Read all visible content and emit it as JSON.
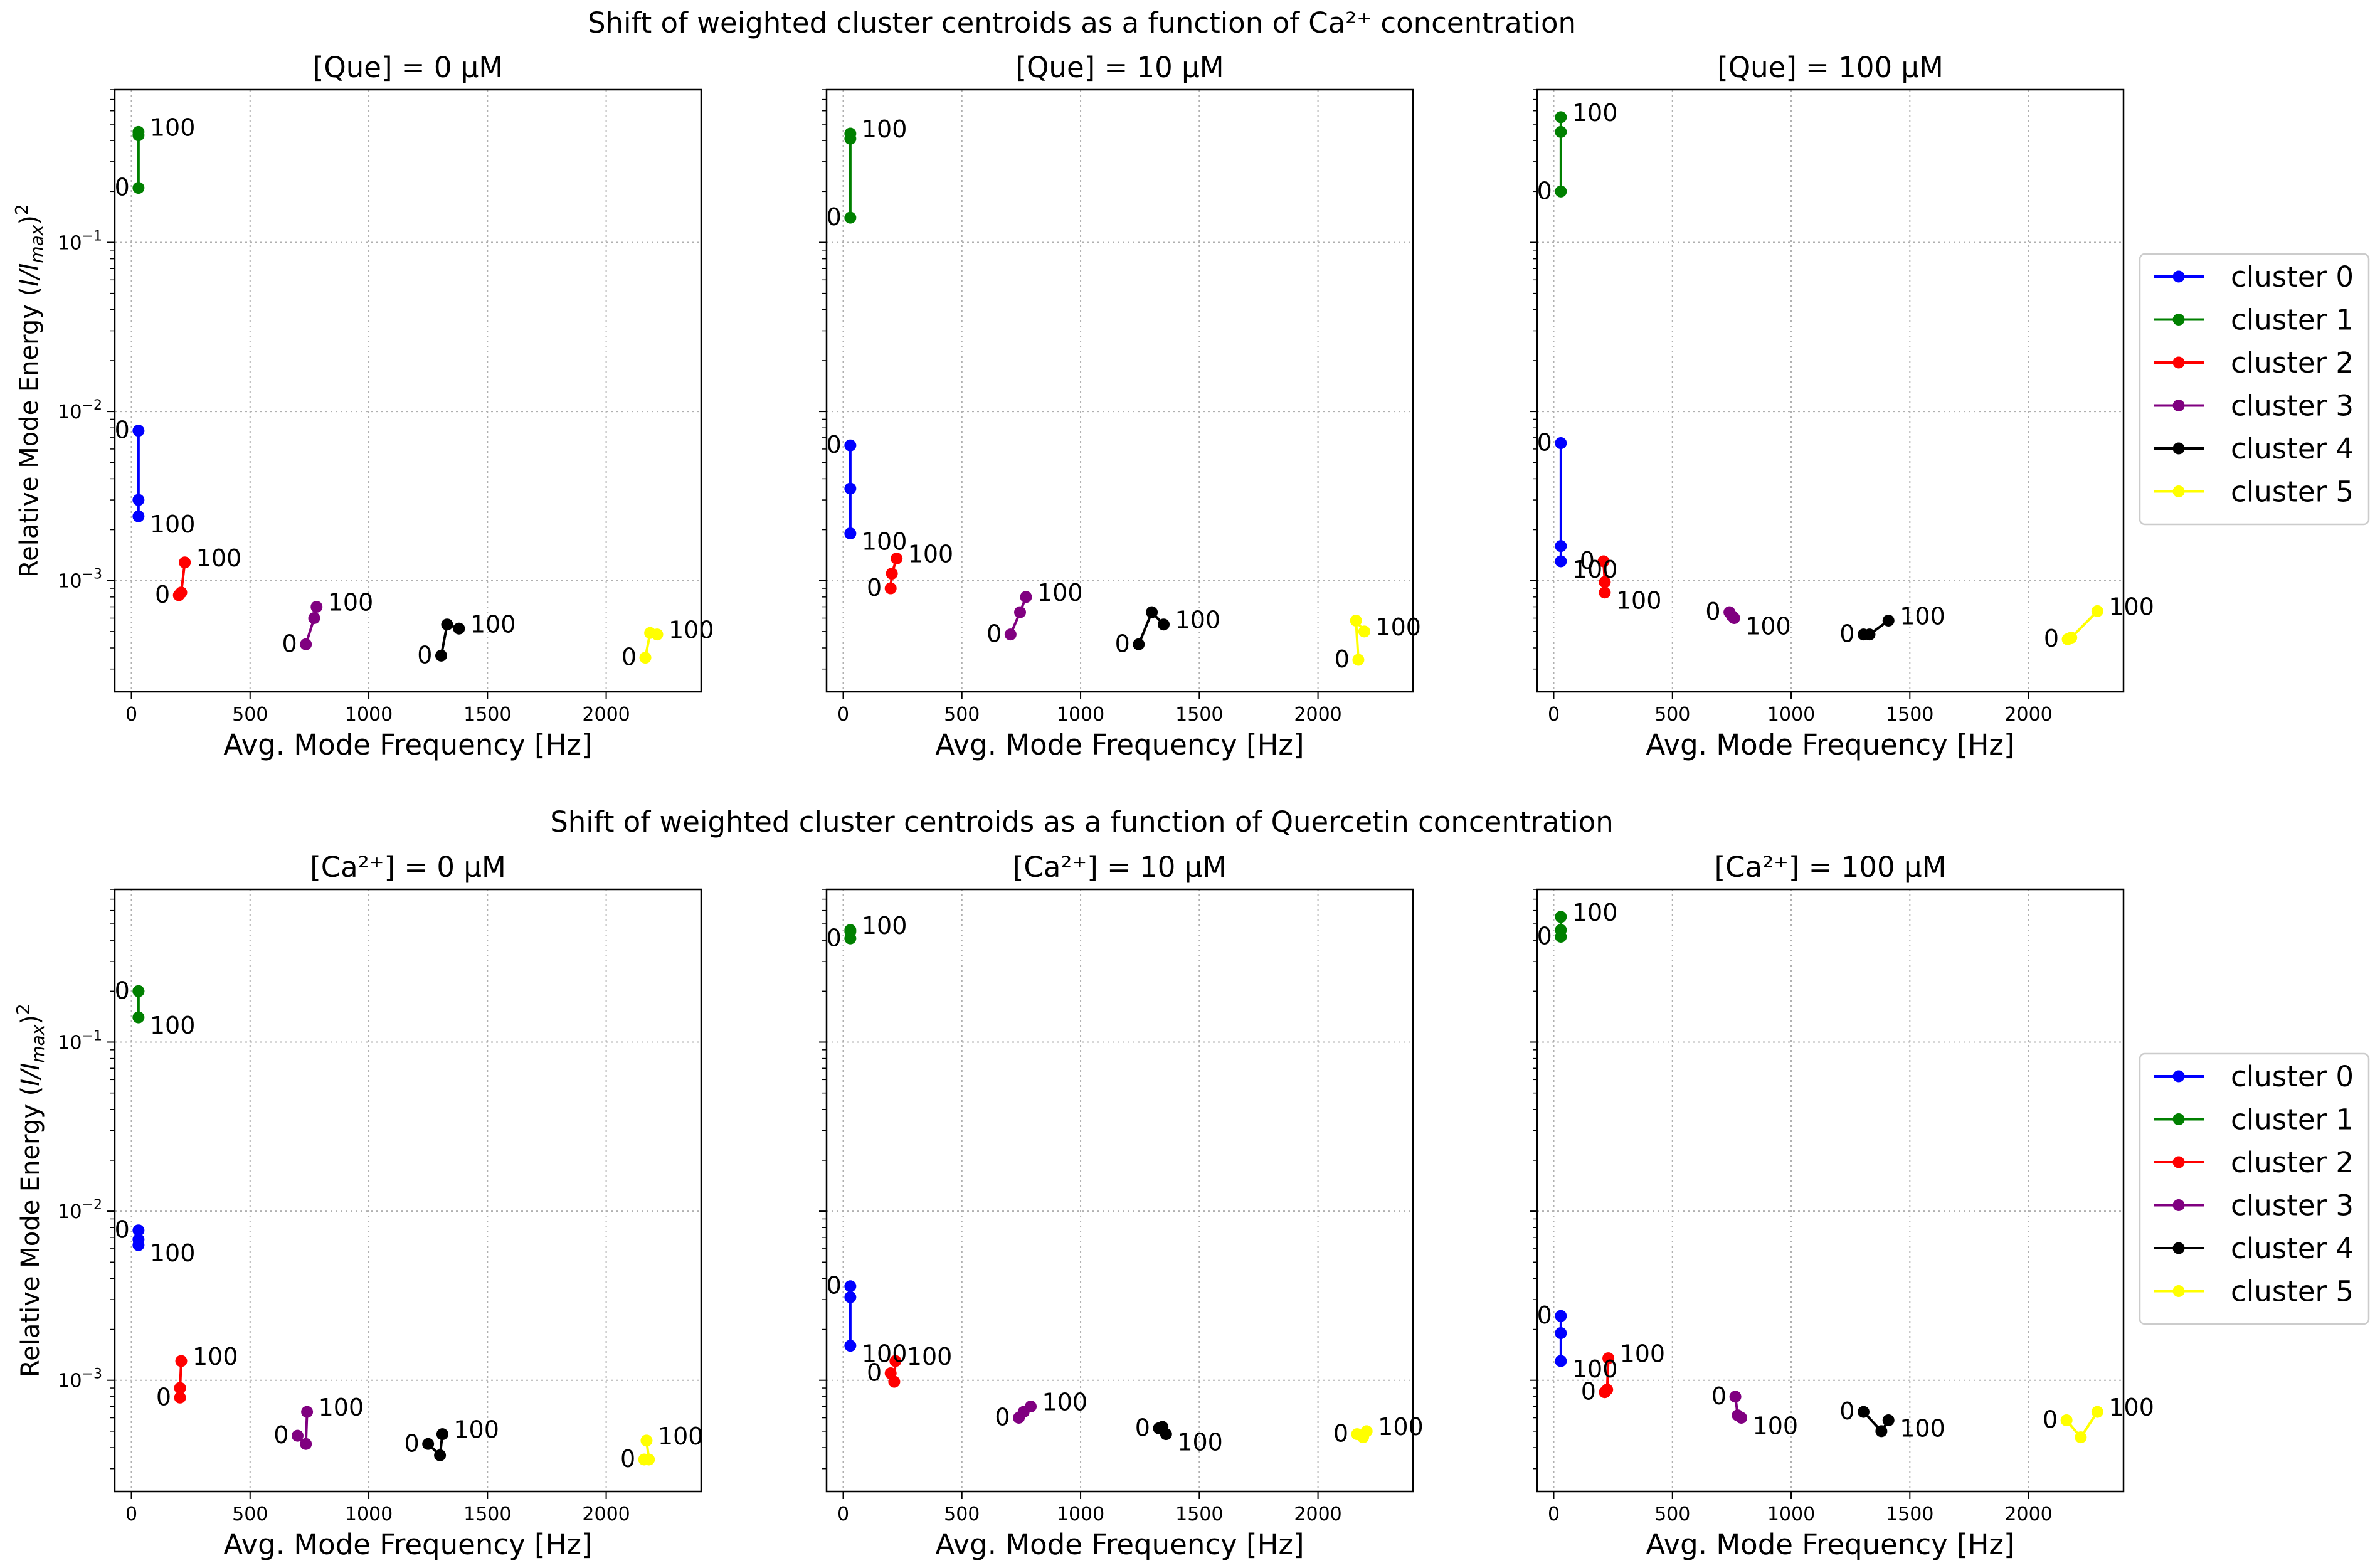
{
  "figure": {
    "row_titles": [
      "Shift of weighted cluster centroids as a function of Ca²⁺ concentration",
      "Shift of weighted cluster centroids as a function of Quercetin concentration"
    ]
  },
  "chart_data": [
    {
      "type": "line",
      "title": "[Que] = 0 μM",
      "xlabel": "Avg. Mode Frequency [Hz]",
      "ylabel": "Relative Mode Energy (I/I_max)^2",
      "xlim": [
        -70,
        2400
      ],
      "ylim": [
        0.00022,
        0.8
      ],
      "yscale": "log",
      "xticks": [
        "0",
        "500",
        "1000",
        "1500",
        "2000"
      ],
      "yticks": [
        "10⁻³",
        "10⁻²",
        "10⁻¹"
      ],
      "grid": true,
      "series": [
        {
          "name": "cluster 0",
          "x": [
            30,
            30,
            30
          ],
          "y": [
            0.0077,
            0.003,
            0.0024
          ],
          "start_label": "0",
          "end_label": "100"
        },
        {
          "name": "cluster 1",
          "x": [
            30,
            30,
            30
          ],
          "y": [
            0.21,
            0.43,
            0.45
          ],
          "start_label": "0",
          "end_label": "100"
        },
        {
          "name": "cluster 2",
          "x": [
            200,
            210,
            225
          ],
          "y": [
            0.00082,
            0.00085,
            0.00128
          ],
          "start_label": "0",
          "end_label": "100"
        },
        {
          "name": "cluster 3",
          "x": [
            735,
            770,
            780
          ],
          "y": [
            0.00042,
            0.0006,
            0.0007
          ],
          "start_label": "0",
          "end_label": "100"
        },
        {
          "name": "cluster 4",
          "x": [
            1305,
            1330,
            1380
          ],
          "y": [
            0.00036,
            0.00055,
            0.00052
          ],
          "start_label": "0",
          "end_label": "100"
        },
        {
          "name": "cluster 5",
          "x": [
            2165,
            2185,
            2215
          ],
          "y": [
            0.00035,
            0.00049,
            0.00048
          ],
          "start_label": "0",
          "end_label": "100"
        }
      ]
    },
    {
      "type": "line",
      "title": "[Que] = 10 μM",
      "xlabel": "Avg. Mode Frequency [Hz]",
      "xlim": [
        -70,
        2400
      ],
      "ylim": [
        0.00022,
        0.8
      ],
      "yscale": "log",
      "xticks": [
        "0",
        "500",
        "1000",
        "1500",
        "2000"
      ],
      "grid": true,
      "series": [
        {
          "name": "cluster 0",
          "x": [
            30,
            30,
            30
          ],
          "y": [
            0.0063,
            0.0035,
            0.0019
          ],
          "start_label": "0",
          "end_label": "100"
        },
        {
          "name": "cluster 1",
          "x": [
            30,
            30,
            30
          ],
          "y": [
            0.14,
            0.41,
            0.44
          ],
          "start_label": "0",
          "end_label": "100"
        },
        {
          "name": "cluster 2",
          "x": [
            200,
            205,
            225
          ],
          "y": [
            0.0009,
            0.0011,
            0.00135
          ],
          "start_label": "0",
          "end_label": "100"
        },
        {
          "name": "cluster 3",
          "x": [
            705,
            745,
            770
          ],
          "y": [
            0.00048,
            0.00065,
            0.0008
          ],
          "start_label": "0",
          "end_label": "100"
        },
        {
          "name": "cluster 4",
          "x": [
            1245,
            1300,
            1350
          ],
          "y": [
            0.00042,
            0.00065,
            0.00055
          ],
          "start_label": "0",
          "end_label": "100"
        },
        {
          "name": "cluster 5",
          "x": [
            2170,
            2160,
            2195
          ],
          "y": [
            0.00034,
            0.00058,
            0.0005
          ],
          "start_label": "0",
          "end_label": "100"
        }
      ]
    },
    {
      "type": "line",
      "title": "[Que] = 100 μM",
      "xlabel": "Avg. Mode Frequency [Hz]",
      "xlim": [
        -70,
        2400
      ],
      "ylim": [
        0.00022,
        0.8
      ],
      "yscale": "log",
      "xticks": [
        "0",
        "500",
        "1000",
        "1500",
        "2000"
      ],
      "grid": true,
      "series": [
        {
          "name": "cluster 0",
          "x": [
            30,
            30,
            30
          ],
          "y": [
            0.0065,
            0.0016,
            0.0013
          ],
          "start_label": "0",
          "end_label": "100"
        },
        {
          "name": "cluster 1",
          "x": [
            30,
            30,
            30
          ],
          "y": [
            0.2,
            0.45,
            0.55
          ],
          "start_label": "0",
          "end_label": "100"
        },
        {
          "name": "cluster 2",
          "x": [
            210,
            215,
            215
          ],
          "y": [
            0.0013,
            0.00098,
            0.00085
          ],
          "start_label": "0",
          "end_label": "100"
        },
        {
          "name": "cluster 3",
          "x": [
            740,
            750,
            760
          ],
          "y": [
            0.00065,
            0.00062,
            0.0006
          ],
          "start_label": "0",
          "end_label": "100"
        },
        {
          "name": "cluster 4",
          "x": [
            1305,
            1330,
            1410
          ],
          "y": [
            0.00048,
            0.00048,
            0.00058
          ],
          "start_label": "0",
          "end_label": "100"
        },
        {
          "name": "cluster 5",
          "x": [
            2165,
            2180,
            2290
          ],
          "y": [
            0.00045,
            0.00046,
            0.00066
          ],
          "start_label": "0",
          "end_label": "100"
        }
      ]
    },
    {
      "type": "line",
      "title": "[Ca²⁺] = 0 μM",
      "xlabel": "Avg. Mode Frequency [Hz]",
      "ylabel": "Relative Mode Energy (I/I_max)^2",
      "xlim": [
        -70,
        2400
      ],
      "ylim": [
        0.00022,
        0.8
      ],
      "yscale": "log",
      "xticks": [
        "0",
        "500",
        "1000",
        "1500",
        "2000"
      ],
      "yticks": [
        "10⁻³",
        "10⁻²",
        "10⁻¹"
      ],
      "grid": true,
      "series": [
        {
          "name": "cluster 0",
          "x": [
            30,
            30,
            30
          ],
          "y": [
            0.0077,
            0.0068,
            0.0063
          ],
          "start_label": "0",
          "end_label": "100"
        },
        {
          "name": "cluster 1",
          "x": [
            30,
            30,
            30
          ],
          "y": [
            0.2,
            0.2,
            0.14
          ],
          "start_label": "0",
          "end_label": "100"
        },
        {
          "name": "cluster 2",
          "x": [
            205,
            205,
            210
          ],
          "y": [
            0.00079,
            0.0009,
            0.0013
          ],
          "start_label": "0",
          "end_label": "100"
        },
        {
          "name": "cluster 3",
          "x": [
            700,
            735,
            740
          ],
          "y": [
            0.00047,
            0.00042,
            0.00065
          ],
          "start_label": "0",
          "end_label": "100"
        },
        {
          "name": "cluster 4",
          "x": [
            1250,
            1300,
            1310
          ],
          "y": [
            0.00042,
            0.00036,
            0.00048
          ],
          "start_label": "0",
          "end_label": "100"
        },
        {
          "name": "cluster 5",
          "x": [
            2160,
            2180,
            2170
          ],
          "y": [
            0.00034,
            0.00034,
            0.00044
          ],
          "start_label": "0",
          "end_label": "100"
        }
      ]
    },
    {
      "type": "line",
      "title": "[Ca²⁺] = 10 μM",
      "xlabel": "Avg. Mode Frequency [Hz]",
      "xlim": [
        -70,
        2400
      ],
      "ylim": [
        0.00022,
        0.8
      ],
      "yscale": "log",
      "xticks": [
        "0",
        "500",
        "1000",
        "1500",
        "2000"
      ],
      "grid": true,
      "series": [
        {
          "name": "cluster 0",
          "x": [
            30,
            30,
            30
          ],
          "y": [
            0.0036,
            0.0031,
            0.0016
          ],
          "start_label": "0",
          "end_label": "100"
        },
        {
          "name": "cluster 1",
          "x": [
            30,
            30,
            30
          ],
          "y": [
            0.41,
            0.45,
            0.46
          ],
          "start_label": "0",
          "end_label": "100"
        },
        {
          "name": "cluster 2",
          "x": [
            200,
            215,
            220
          ],
          "y": [
            0.0011,
            0.00098,
            0.0013
          ],
          "start_label": "0",
          "end_label": "100"
        },
        {
          "name": "cluster 3",
          "x": [
            740,
            760,
            790
          ],
          "y": [
            0.0006,
            0.00065,
            0.0007
          ],
          "start_label": "0",
          "end_label": "100"
        },
        {
          "name": "cluster 4",
          "x": [
            1330,
            1345,
            1360
          ],
          "y": [
            0.00052,
            0.00053,
            0.00048
          ],
          "start_label": "0",
          "end_label": "100"
        },
        {
          "name": "cluster 5",
          "x": [
            2165,
            2190,
            2205
          ],
          "y": [
            0.00048,
            0.00046,
            0.0005
          ],
          "start_label": "0",
          "end_label": "100"
        }
      ]
    },
    {
      "type": "line",
      "title": "[Ca²⁺] = 100 μM",
      "xlabel": "Avg. Mode Frequency [Hz]",
      "xlim": [
        -70,
        2400
      ],
      "ylim": [
        0.00022,
        0.8
      ],
      "yscale": "log",
      "xticks": [
        "0",
        "500",
        "1000",
        "1500",
        "2000"
      ],
      "grid": true,
      "series": [
        {
          "name": "cluster 0",
          "x": [
            30,
            30,
            30
          ],
          "y": [
            0.0024,
            0.0019,
            0.0013
          ],
          "start_label": "0",
          "end_label": "100"
        },
        {
          "name": "cluster 1",
          "x": [
            30,
            30,
            30
          ],
          "y": [
            0.42,
            0.46,
            0.55
          ],
          "start_label": "0",
          "end_label": "100"
        },
        {
          "name": "cluster 2",
          "x": [
            215,
            225,
            230
          ],
          "y": [
            0.00085,
            0.00088,
            0.00135
          ],
          "start_label": "0",
          "end_label": "100"
        },
        {
          "name": "cluster 3",
          "x": [
            765,
            775,
            790
          ],
          "y": [
            0.0008,
            0.00062,
            0.0006
          ],
          "start_label": "0",
          "end_label": "100"
        },
        {
          "name": "cluster 4",
          "x": [
            1305,
            1380,
            1410
          ],
          "y": [
            0.00065,
            0.0005,
            0.00058
          ],
          "start_label": "0",
          "end_label": "100"
        },
        {
          "name": "cluster 5",
          "x": [
            2160,
            2220,
            2290
          ],
          "y": [
            0.00058,
            0.00046,
            0.00065
          ],
          "start_label": "0",
          "end_label": "100"
        }
      ]
    }
  ],
  "legends": [
    {
      "placement": "right of row 1",
      "entries": [
        "cluster 0",
        "cluster 1",
        "cluster 2",
        "cluster 3",
        "cluster 4",
        "cluster 5"
      ]
    },
    {
      "placement": "right of row 2",
      "entries": [
        "cluster 0",
        "cluster 1",
        "cluster 2",
        "cluster 3",
        "cluster 4",
        "cluster 5"
      ]
    }
  ],
  "colors": {
    "cluster 0": "#0000ff",
    "cluster 1": "#008000",
    "cluster 2": "#ff0000",
    "cluster 3": "#800080",
    "cluster 4": "#000000",
    "cluster 5": "#ffff00",
    "grid": "#b0b0b0"
  }
}
